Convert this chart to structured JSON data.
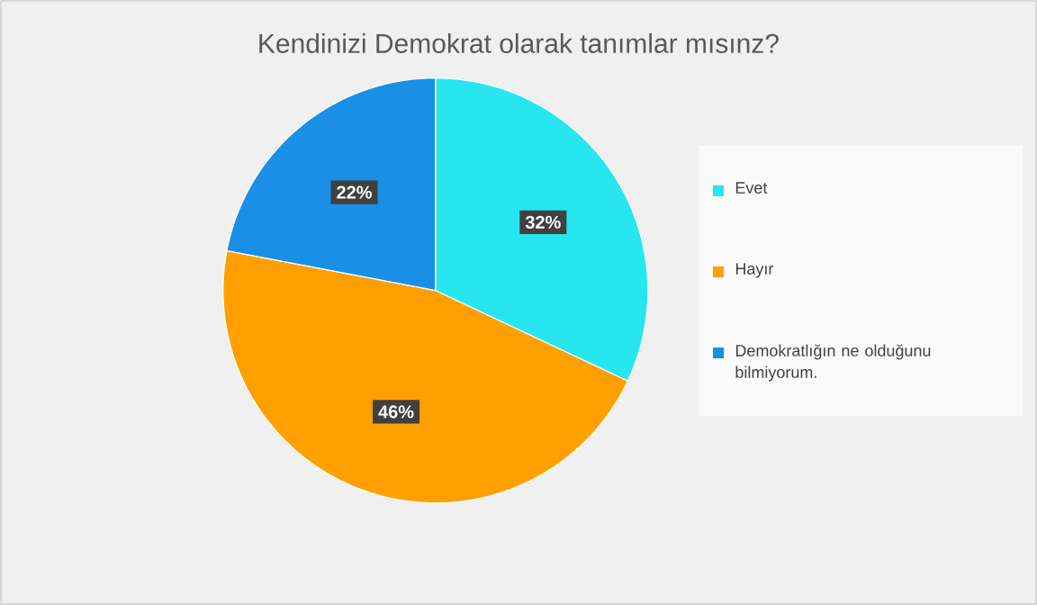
{
  "chart_data": {
    "type": "pie",
    "title": "Kendinizi Demokrat olarak tanımlar mısınz?",
    "categories": [
      "Evet",
      "Hayır",
      "Demokratlığın ne olduğunu bilmiyorum."
    ],
    "values": [
      32,
      46,
      22
    ],
    "colors": [
      "#27e6f0",
      "#ffa000",
      "#1a8fe6"
    ],
    "value_labels": [
      "32%",
      "46%",
      "22%"
    ],
    "legend": "right"
  }
}
